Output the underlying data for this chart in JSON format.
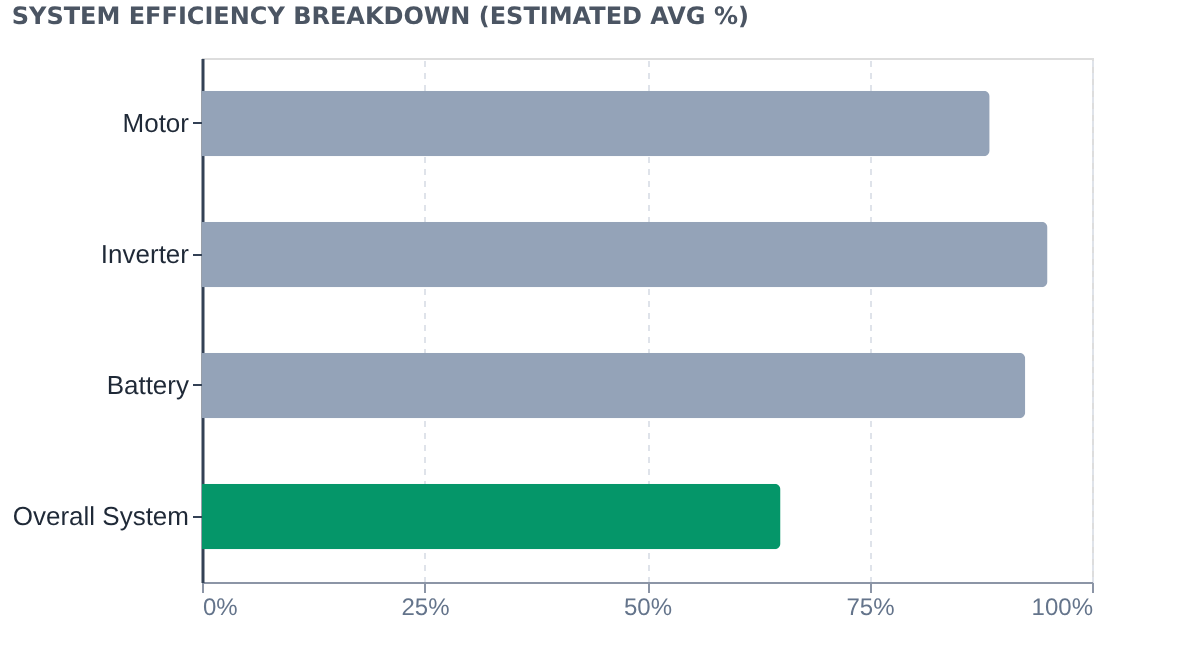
{
  "chart_data": {
    "type": "bar",
    "orientation": "horizontal",
    "title": "SYSTEM EFFICIENCY BREAKDOWN (ESTIMATED AVG %)",
    "categories": [
      "Motor",
      "Inverter",
      "Battery",
      "Overall System"
    ],
    "values": [
      88.5,
      95,
      92.5,
      65
    ],
    "colors": [
      "#94a3b8",
      "#94a3b8",
      "#94a3b8",
      "#059669"
    ],
    "xlim": [
      0,
      100
    ],
    "xticks": [
      {
        "value": 0,
        "label": "0%"
      },
      {
        "value": 25,
        "label": "25%"
      },
      {
        "value": 50,
        "label": "50%"
      },
      {
        "value": 75,
        "label": "75%"
      },
      {
        "value": 100,
        "label": "100%"
      }
    ],
    "grid": "x"
  }
}
